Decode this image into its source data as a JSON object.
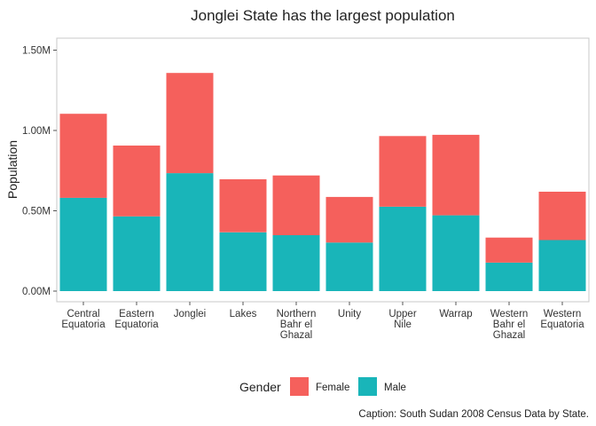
{
  "chart_data": {
    "type": "bar",
    "stacked": true,
    "title": "Jonglei State has the largest population",
    "xlabel": "",
    "ylabel": "Population",
    "ylim": [
      0,
      1.6
    ],
    "yticks": [
      "0.00M",
      "0.50M",
      "1.00M",
      "1.50M"
    ],
    "ytick_values": [
      0,
      0.5,
      1.0,
      1.5
    ],
    "grid": false,
    "categories": [
      [
        "Central",
        "Equatoria"
      ],
      [
        "Eastern",
        "Equatoria"
      ],
      [
        "Jonglei"
      ],
      [
        "Lakes"
      ],
      [
        "Northern",
        "Bahr el",
        "Ghazal"
      ],
      [
        "Unity"
      ],
      [
        "Upper",
        "Nile"
      ],
      [
        "Warrap"
      ],
      [
        "Western",
        "Bahr el",
        "Ghazal"
      ],
      [
        "Western",
        "Equatoria"
      ]
    ],
    "series": [
      {
        "name": "Male",
        "color": "#19b5b9",
        "values": [
          0.581,
          0.465,
          0.734,
          0.366,
          0.348,
          0.302,
          0.525,
          0.472,
          0.177,
          0.318
        ]
      },
      {
        "name": "Female",
        "color": "#f5605c",
        "values": [
          0.523,
          0.441,
          0.624,
          0.33,
          0.372,
          0.284,
          0.44,
          0.501,
          0.156,
          0.301
        ]
      }
    ],
    "legend": {
      "title": "Gender",
      "position": "bottom",
      "items": [
        {
          "label": "Female",
          "color": "#f5605c"
        },
        {
          "label": "Male",
          "color": "#19b5b9"
        }
      ]
    },
    "caption": "Caption: South Sudan 2008 Census Data by State."
  }
}
